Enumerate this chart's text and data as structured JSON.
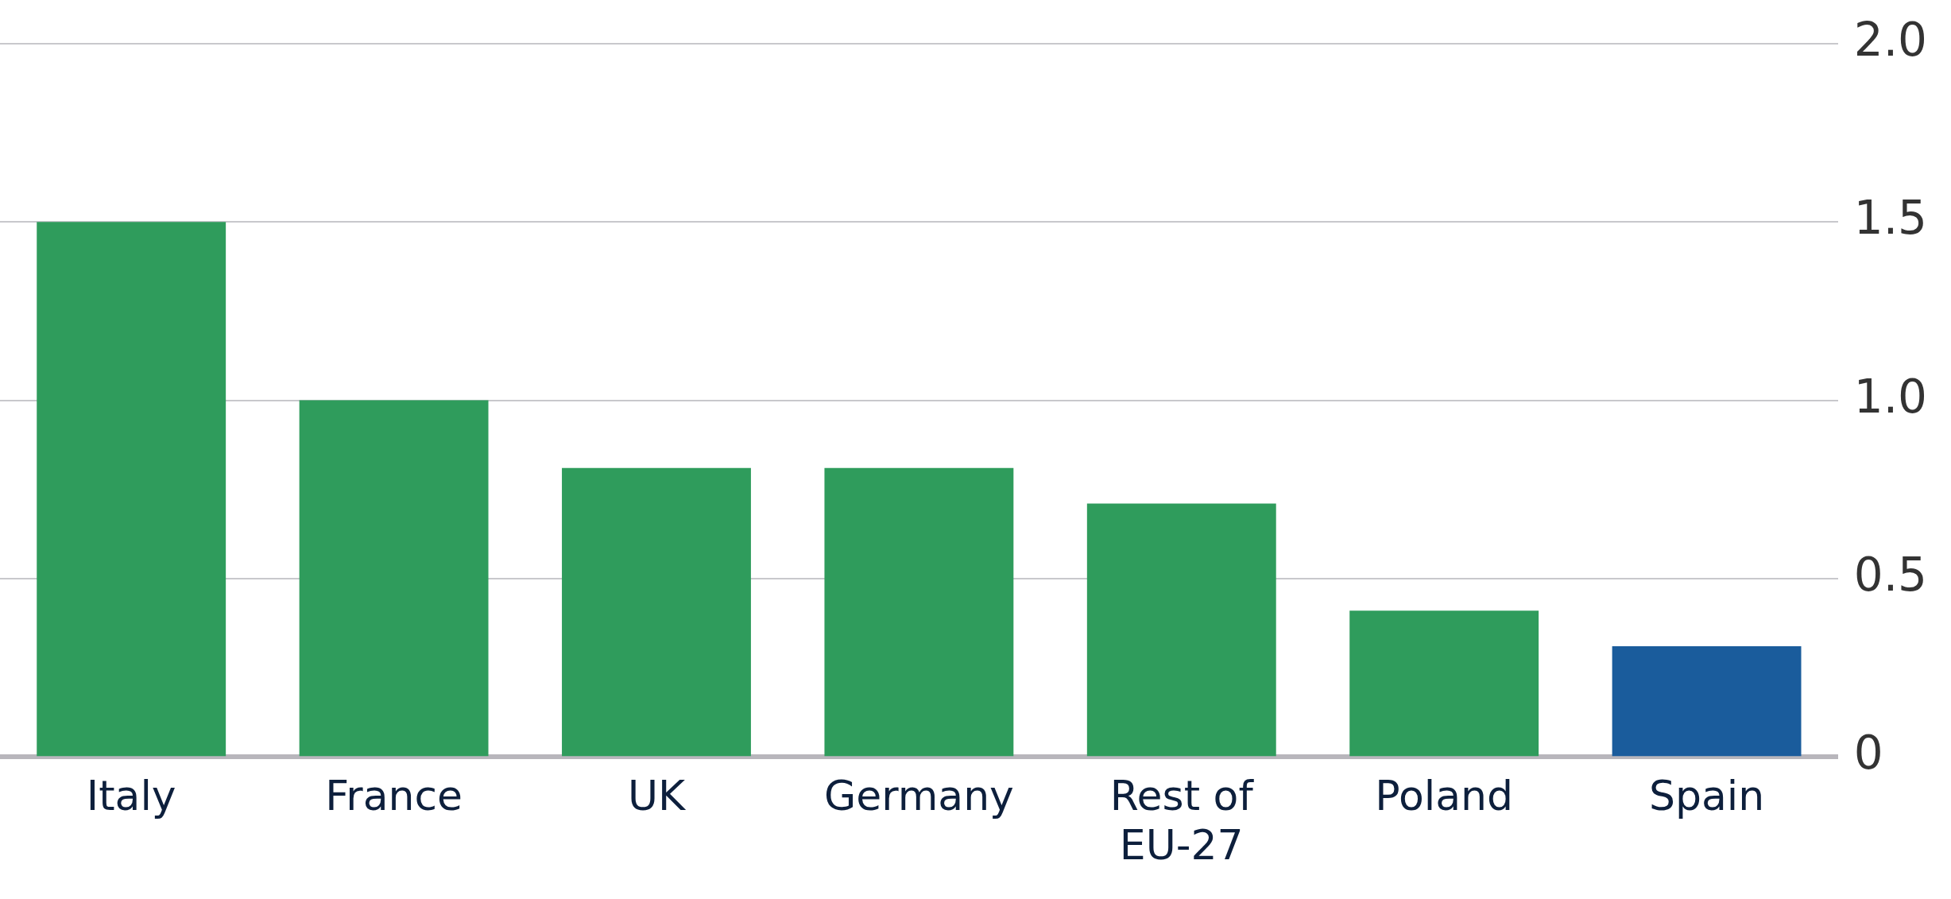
{
  "chart_data": {
    "type": "bar",
    "categories": [
      "Italy",
      "France",
      "UK",
      "Germany",
      "Rest of EU-27",
      "Poland",
      "Spain"
    ],
    "values": [
      1.5,
      1.0,
      0.81,
      0.81,
      0.71,
      0.41,
      0.31
    ],
    "colors": [
      "#2f9c5c",
      "#2f9c5c",
      "#2f9c5c",
      "#2f9c5c",
      "#2f9c5c",
      "#2f9c5c",
      "#1a5c9c"
    ],
    "ylim": [
      0,
      2.0
    ],
    "yticks": [
      {
        "value": 0,
        "label": "0"
      },
      {
        "value": 0.5,
        "label": "0.5"
      },
      {
        "value": 1,
        "label": "1.0"
      },
      {
        "value": 1.5,
        "label": "1.5"
      },
      {
        "value": 2,
        "label": "2.0"
      }
    ],
    "grid": "y",
    "legend": false
  }
}
